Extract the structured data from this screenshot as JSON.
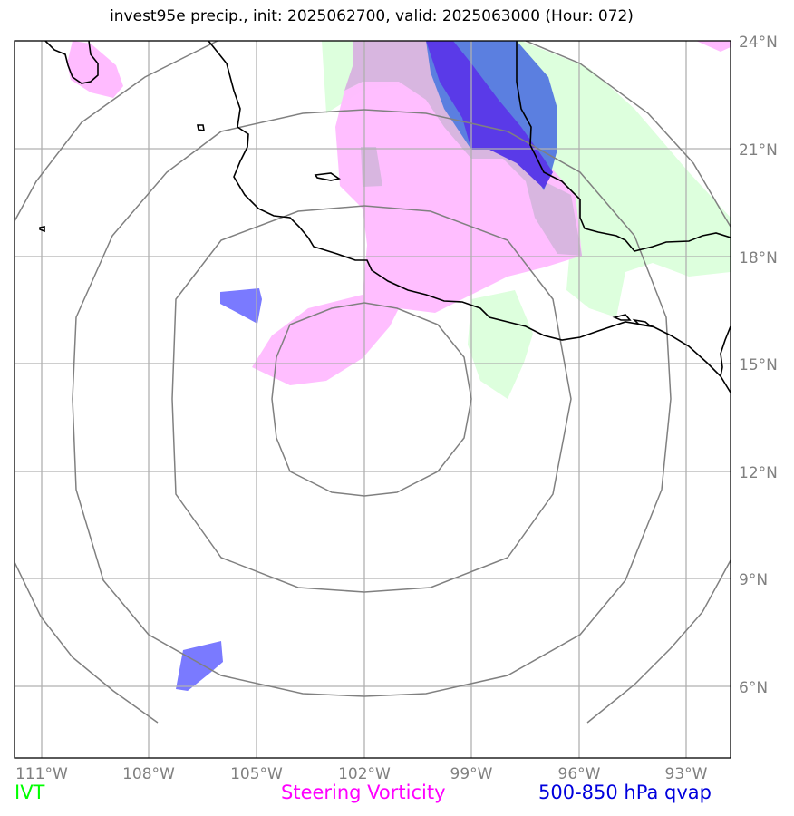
{
  "title": "invest95e precip., init: 2025062700, valid: 2025063000 (Hour: 072)",
  "map": {
    "lon_labels": [
      "111°W",
      "108°W",
      "105°W",
      "102°W",
      "99°W",
      "96°W",
      "93°W"
    ],
    "lat_labels": [
      "24°N",
      "21°N",
      "18°N",
      "15°N",
      "12°N",
      "9°N",
      "6°N"
    ]
  },
  "legend": [
    {
      "label": "IVT",
      "color": "#00ff00"
    },
    {
      "label": "Steering Vorticity",
      "color": "#ff00ff"
    },
    {
      "label": "500-850 hPa qvap",
      "color": "#0000dd"
    }
  ],
  "colors": {
    "ivt_fill": "#ddffdd",
    "vorticity_fill": "#ffbbff",
    "qvap_fill": "#7a7aff",
    "qvap_dark": "#5a3ae8",
    "grid": "#b0b0b0",
    "rings": "#808080",
    "coast": "#000000"
  }
}
